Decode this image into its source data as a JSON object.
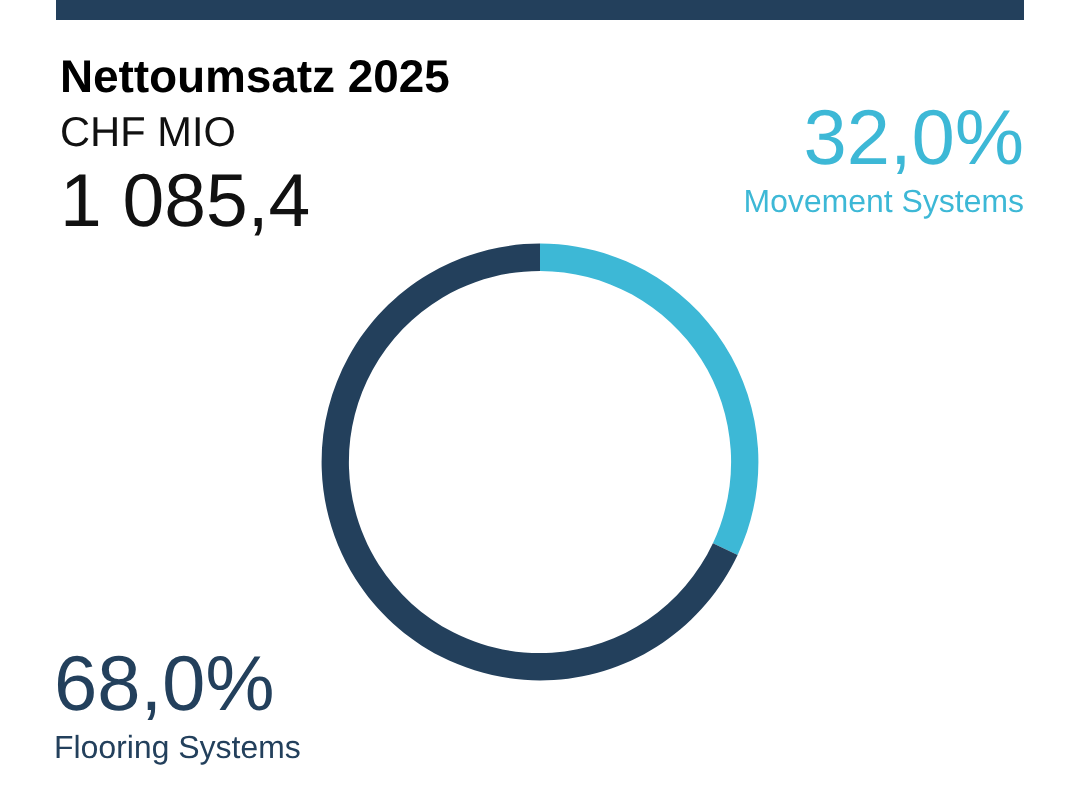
{
  "chart_data": {
    "type": "donut",
    "title": "Nettoumsatz 2025",
    "subtitle": "CHF MIO",
    "annotations": [
      "1 085,4"
    ],
    "categories": [
      "Movement Systems",
      "Flooring Systems"
    ],
    "values": [
      32.0,
      68.0
    ],
    "colors": [
      "#3db8d6",
      "#23405c"
    ],
    "value_labels": [
      "32,0%",
      "68,0%"
    ]
  }
}
